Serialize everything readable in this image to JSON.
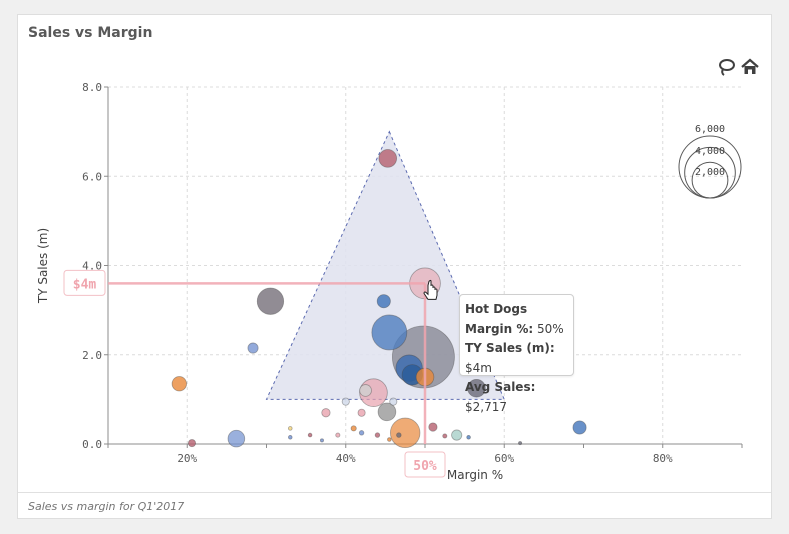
{
  "title": "Sales vs Margin",
  "footnote": "Sales vs margin for Q1'2017",
  "icons": {
    "lasso": "lasso-select-icon",
    "home": "home-reset-icon"
  },
  "tooltip": {
    "title": "Hot Dogs",
    "rows": [
      {
        "label": "Margin %:",
        "value": "50%"
      },
      {
        "label": "TY Sales (m):",
        "value": "$4m"
      },
      {
        "label": "Avg Sales:",
        "value": "$2,717"
      }
    ]
  },
  "crosshair": {
    "x_label": "50%",
    "y_label": "$4m",
    "x": 0.5,
    "y": 3.6,
    "color": "#f0a5ae"
  },
  "size_legend": {
    "labels": [
      "6,000",
      "4,000",
      "2,000"
    ],
    "values": [
      6000,
      4000,
      2000
    ]
  },
  "colors": {
    "accent_pink": "#f0a5ae",
    "lasso_fill": "#dfe2ef",
    "lasso_stroke": "#5b6ab0"
  },
  "chart_data": {
    "type": "scatter",
    "title": "Sales vs Margin",
    "xlabel": "Margin %",
    "ylabel": "TY Sales (m)",
    "xlim": [
      0.1,
      0.9
    ],
    "ylim": [
      0,
      8
    ],
    "xticks": [
      0.2,
      0.4,
      0.6,
      0.8
    ],
    "xtick_labels": [
      "20%",
      "40%",
      "60%",
      "80%"
    ],
    "yticks": [
      0,
      2,
      4,
      6,
      8
    ],
    "ytick_labels": [
      "0.0",
      "2.0",
      "4.0",
      "6.0",
      "8.0"
    ],
    "grid": true,
    "size_legend_position": "top-right",
    "lasso_polygon": [
      [
        0.455,
        7.0
      ],
      [
        0.6,
        1.0
      ],
      [
        0.3,
        1.0
      ]
    ],
    "points": [
      {
        "x": 0.453,
        "y": 6.4,
        "size": 900,
        "color": "#b5606f",
        "alpha": 0.8
      },
      {
        "x": 0.5,
        "y": 3.6,
        "size": 2717,
        "color": "#e8a3ae",
        "alpha": 0.6
      },
      {
        "x": 0.305,
        "y": 3.2,
        "size": 2000,
        "color": "#6c6670",
        "alpha": 0.75
      },
      {
        "x": 0.448,
        "y": 3.2,
        "size": 500,
        "color": "#4f7ebf",
        "alpha": 0.9
      },
      {
        "x": 0.455,
        "y": 2.5,
        "size": 3500,
        "color": "#4f7ebf",
        "alpha": 0.8
      },
      {
        "x": 0.498,
        "y": 1.95,
        "size": 11000,
        "color": "#6a6a78",
        "alpha": 0.6
      },
      {
        "x": 0.48,
        "y": 1.7,
        "size": 2000,
        "color": "#3f6fb0",
        "alpha": 0.85
      },
      {
        "x": 0.484,
        "y": 1.55,
        "size": 1200,
        "color": "#2c5d9a",
        "alpha": 0.85
      },
      {
        "x": 0.5,
        "y": 1.5,
        "size": 900,
        "color": "#e8883a",
        "alpha": 0.8
      },
      {
        "x": 0.283,
        "y": 2.15,
        "size": 300,
        "color": "#6f8ecf",
        "alpha": 0.75
      },
      {
        "x": 0.435,
        "y": 1.15,
        "size": 2200,
        "color": "#e8a3ae",
        "alpha": 0.7
      },
      {
        "x": 0.425,
        "y": 1.2,
        "size": 400,
        "color": "#cfcfcf",
        "alpha": 0.8
      },
      {
        "x": 0.565,
        "y": 1.25,
        "size": 900,
        "color": "#6a6a78",
        "alpha": 0.8
      },
      {
        "x": 0.19,
        "y": 1.35,
        "size": 600,
        "color": "#e8883a",
        "alpha": 0.8
      },
      {
        "x": 0.452,
        "y": 0.72,
        "size": 900,
        "color": "#8a8a8a",
        "alpha": 0.7
      },
      {
        "x": 0.42,
        "y": 0.7,
        "size": 150,
        "color": "#e8a3ae",
        "alpha": 0.8
      },
      {
        "x": 0.375,
        "y": 0.7,
        "size": 200,
        "color": "#e8a3ae",
        "alpha": 0.8
      },
      {
        "x": 0.4,
        "y": 0.95,
        "size": 150,
        "color": "#cfd8e8",
        "alpha": 0.8
      },
      {
        "x": 0.46,
        "y": 0.95,
        "size": 150,
        "color": "#cfd8e8",
        "alpha": 0.8
      },
      {
        "x": 0.475,
        "y": 0.25,
        "size": 2500,
        "color": "#e8883a",
        "alpha": 0.7
      },
      {
        "x": 0.51,
        "y": 0.38,
        "size": 200,
        "color": "#b5606f",
        "alpha": 0.8
      },
      {
        "x": 0.54,
        "y": 0.2,
        "size": 300,
        "color": "#a8d0c8",
        "alpha": 0.8
      },
      {
        "x": 0.262,
        "y": 0.12,
        "size": 800,
        "color": "#6f8ecf",
        "alpha": 0.7
      },
      {
        "x": 0.695,
        "y": 0.37,
        "size": 500,
        "color": "#4f7ebf",
        "alpha": 0.85
      },
      {
        "x": 0.206,
        "y": 0.02,
        "size": 150,
        "color": "#b5606f",
        "alpha": 0.8
      },
      {
        "x": 0.41,
        "y": 0.35,
        "size": 80,
        "color": "#e8883a",
        "alpha": 0.8
      },
      {
        "x": 0.42,
        "y": 0.25,
        "size": 60,
        "color": "#6f8ecf",
        "alpha": 0.8
      },
      {
        "x": 0.44,
        "y": 0.2,
        "size": 60,
        "color": "#b5606f",
        "alpha": 0.8
      },
      {
        "x": 0.39,
        "y": 0.2,
        "size": 50,
        "color": "#e8a3ae",
        "alpha": 0.8
      },
      {
        "x": 0.355,
        "y": 0.2,
        "size": 40,
        "color": "#b5606f",
        "alpha": 0.8
      },
      {
        "x": 0.33,
        "y": 0.35,
        "size": 40,
        "color": "#f2d37a",
        "alpha": 0.8
      },
      {
        "x": 0.33,
        "y": 0.15,
        "size": 40,
        "color": "#6f8ecf",
        "alpha": 0.8
      },
      {
        "x": 0.467,
        "y": 0.2,
        "size": 60,
        "color": "#6a6a78",
        "alpha": 0.8
      },
      {
        "x": 0.525,
        "y": 0.18,
        "size": 50,
        "color": "#b5606f",
        "alpha": 0.8
      },
      {
        "x": 0.555,
        "y": 0.15,
        "size": 40,
        "color": "#4f7ebf",
        "alpha": 0.8
      },
      {
        "x": 0.455,
        "y": 0.1,
        "size": 40,
        "color": "#e8883a",
        "alpha": 0.8
      },
      {
        "x": 0.37,
        "y": 0.08,
        "size": 30,
        "color": "#6f8ecf",
        "alpha": 0.8
      },
      {
        "x": 0.62,
        "y": 0.02,
        "size": 30,
        "color": "#6a6a78",
        "alpha": 0.8
      }
    ]
  }
}
